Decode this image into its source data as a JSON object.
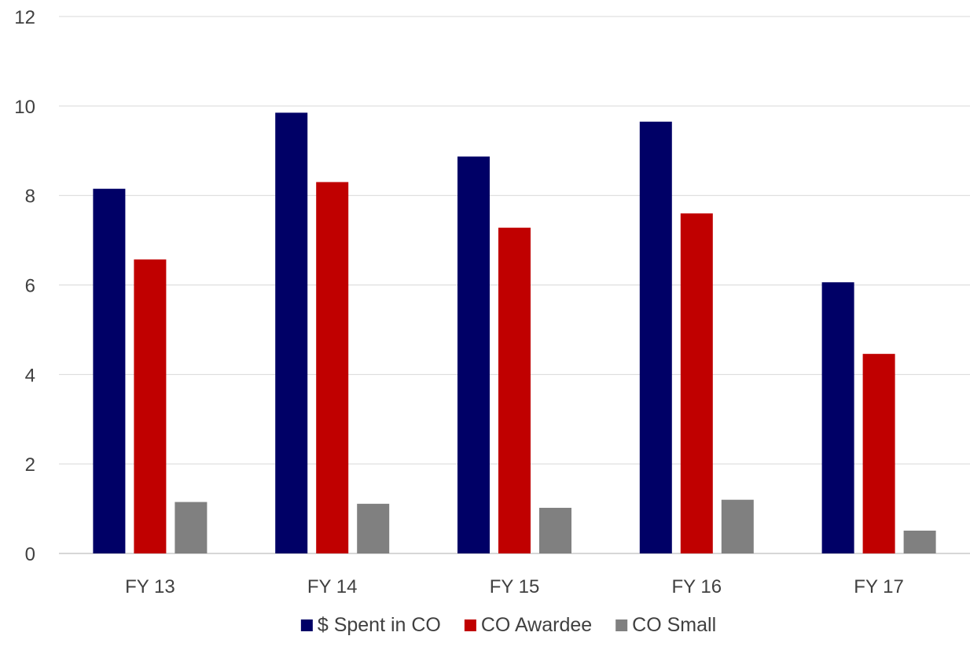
{
  "chart_data": {
    "type": "bar",
    "title": "",
    "xlabel": "",
    "ylabel": "",
    "categories": [
      "FY 13",
      "FY 14",
      "FY 15",
      "FY 16",
      "FY 17"
    ],
    "ylim": [
      0,
      12
    ],
    "yticks": [
      0,
      2,
      4,
      6,
      8,
      10,
      12
    ],
    "grid": true,
    "legend_position": "bottom",
    "series": [
      {
        "name": "$ Spent in CO",
        "color": "#000066",
        "values": [
          8.15,
          9.85,
          8.87,
          9.65,
          6.06
        ]
      },
      {
        "name": "CO Awardee",
        "color": "#c00000",
        "values": [
          6.57,
          8.3,
          7.28,
          7.6,
          4.46
        ]
      },
      {
        "name": "CO Small",
        "color": "#808080",
        "values": [
          1.15,
          1.11,
          1.02,
          1.2,
          0.51
        ]
      }
    ]
  }
}
